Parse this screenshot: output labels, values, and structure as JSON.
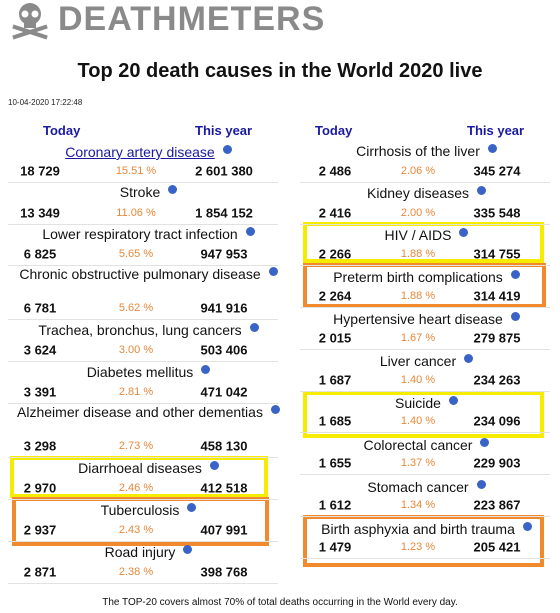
{
  "header": {
    "logo": "DEATHMETERS",
    "title": "Top 20 death causes in the World 2020 live",
    "timestamp": "10-04-2020 17:22:48"
  },
  "columns": [
    {
      "today_label": "Today",
      "year_label": "This year",
      "rows": [
        {
          "name": "Coronary artery disease",
          "today": "18 729",
          "percent": "15.51 %",
          "year": "2 601 380"
        },
        {
          "name": "Stroke",
          "today": "13 349",
          "percent": "11.06 %",
          "year": "1 854 152"
        },
        {
          "name": "Lower respiratory tract infection",
          "today": "6 825",
          "percent": "5.65 %",
          "year": "947 953"
        },
        {
          "name": "Chronic obstructive pulmonary disease",
          "today": "6 781",
          "percent": "5.62 %",
          "year": "941 916"
        },
        {
          "name": "Trachea, bronchus, lung cancers",
          "today": "3 624",
          "percent": "3.00 %",
          "year": "503 406"
        },
        {
          "name": "Diabetes mellitus",
          "today": "3 391",
          "percent": "2.81 %",
          "year": "471 042"
        },
        {
          "name": "Alzheimer disease and other dementias",
          "today": "3 298",
          "percent": "2.73 %",
          "year": "458 130"
        },
        {
          "name": "Diarrhoeal diseases",
          "today": "2 970",
          "percent": "2.46 %",
          "year": "412 518"
        },
        {
          "name": "Tuberculosis",
          "today": "2 937",
          "percent": "2.43 %",
          "year": "407 991"
        },
        {
          "name": "Road injury",
          "today": "2 871",
          "percent": "2.38 %",
          "year": "398 768"
        }
      ]
    },
    {
      "today_label": "Today",
      "year_label": "This year",
      "rows": [
        {
          "name": "Cirrhosis of the liver",
          "today": "2 486",
          "percent": "2.06 %",
          "year": "345 274"
        },
        {
          "name": "Kidney diseases",
          "today": "2 416",
          "percent": "2.00 %",
          "year": "335 548"
        },
        {
          "name": "HIV / AIDS",
          "today": "2 266",
          "percent": "1.88 %",
          "year": "314 755"
        },
        {
          "name": "Preterm birth complications",
          "today": "2 264",
          "percent": "1.88 %",
          "year": "314 419"
        },
        {
          "name": "Hypertensive heart disease",
          "today": "2 015",
          "percent": "1.67 %",
          "year": "279 875"
        },
        {
          "name": "Liver cancer",
          "today": "1 687",
          "percent": "1.40 %",
          "year": "234 263"
        },
        {
          "name": "Suicide",
          "today": "1 685",
          "percent": "1.40 %",
          "year": "234 096"
        },
        {
          "name": "Colorectal cancer",
          "today": "1 655",
          "percent": "1.37 %",
          "year": "229 903"
        },
        {
          "name": "Stomach cancer",
          "today": "1 612",
          "percent": "1.34 %",
          "year": "223 867"
        },
        {
          "name": "Birth asphyxia and birth trauma",
          "today": "1 479",
          "percent": "1.23 %",
          "year": "205 421"
        }
      ]
    }
  ],
  "footer": "The TOP-20 covers almost 70% of total deaths occurring in the World every day."
}
